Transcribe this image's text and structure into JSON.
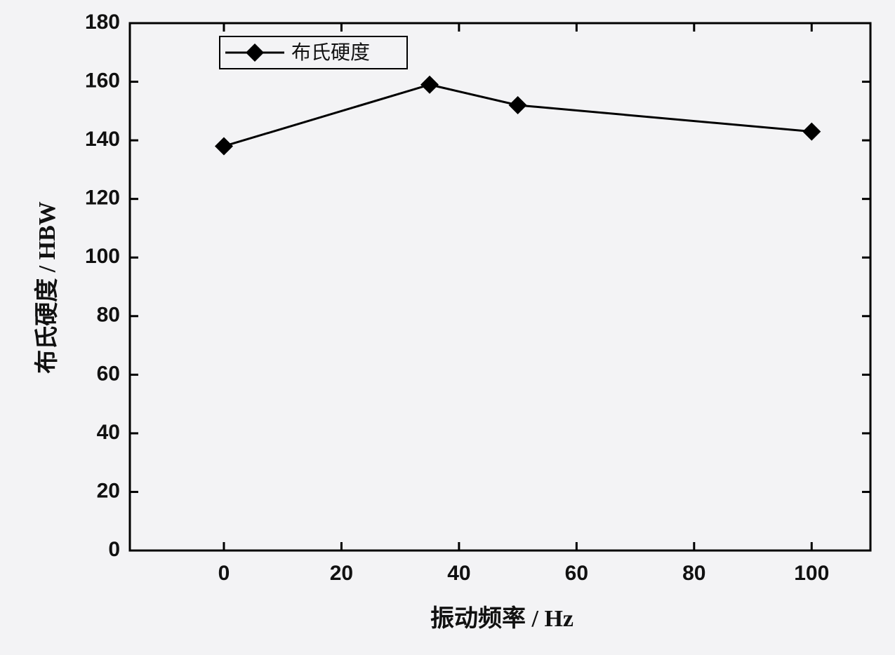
{
  "chart_data": {
    "type": "line",
    "x_label": "振动频率 / Hz",
    "y_label": "布氏硬度 / HBW",
    "x": [
      0,
      35,
      50,
      100
    ],
    "series": [
      {
        "name": "布氏硬度",
        "color": "#000000",
        "values": [
          138,
          159,
          152,
          143
        ]
      }
    ],
    "xlim": [
      -16,
      110
    ],
    "xticks": [
      0,
      20,
      40,
      60,
      80,
      100
    ],
    "ylim": [
      0,
      180
    ],
    "yticks": [
      0,
      20,
      40,
      60,
      80,
      100,
      120,
      140,
      160,
      180
    ],
    "legend": "upper-left",
    "marker": "diamond",
    "grid": false
  }
}
